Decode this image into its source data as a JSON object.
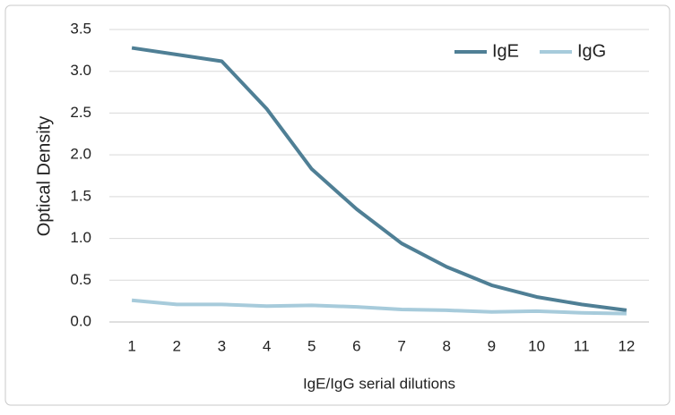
{
  "chart_data": {
    "type": "line",
    "x_label": "IgE/IgG serial dilutions",
    "y_label": "Optical Density",
    "categories": [
      "1",
      "2",
      "3",
      "4",
      "5",
      "6",
      "7",
      "8",
      "9",
      "10",
      "11",
      "12"
    ],
    "series": [
      {
        "name": "IgE",
        "color": "#4f7f95",
        "values": [
          3.28,
          3.2,
          3.12,
          2.55,
          1.83,
          1.35,
          0.94,
          0.66,
          0.44,
          0.3,
          0.21,
          0.14
        ]
      },
      {
        "name": "IgG",
        "color": "#a7cbdb",
        "values": [
          0.26,
          0.21,
          0.21,
          0.19,
          0.2,
          0.18,
          0.15,
          0.14,
          0.12,
          0.13,
          0.11,
          0.1
        ]
      }
    ],
    "ylim": [
      0,
      3.5
    ],
    "yticks": [
      {
        "value": 0,
        "label": "0.0"
      },
      0.5,
      {
        "value": 1,
        "label": "1.0"
      },
      1.5,
      {
        "value": 2,
        "label": "2.0"
      },
      2.5,
      {
        "value": 3,
        "label": "3.0"
      },
      3.5
    ],
    "grid": true,
    "legend": "top-right"
  }
}
